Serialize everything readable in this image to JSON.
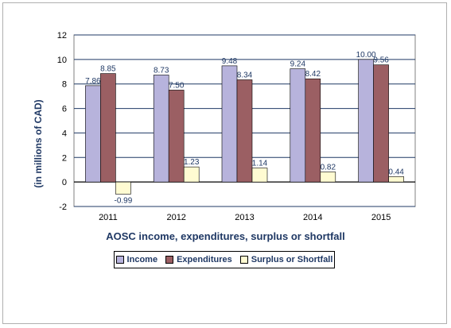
{
  "chart_data": {
    "type": "bar",
    "categories": [
      "2011",
      "2012",
      "2013",
      "2014",
      "2015"
    ],
    "series": [
      {
        "name": "Income",
        "values": [
          7.86,
          8.73,
          9.48,
          9.24,
          10.0
        ],
        "color": "#b7b3dc",
        "labels": [
          "7.86",
          "8.73",
          "9.48",
          "9.24",
          "10.00"
        ]
      },
      {
        "name": "Expenditures",
        "values": [
          8.85,
          7.5,
          8.34,
          8.42,
          9.56
        ],
        "color": "#9b5f63",
        "labels": [
          "8.85",
          "7.50",
          "8.34",
          "8.42",
          "9.56"
        ]
      },
      {
        "name": "Surplus or Shortfall",
        "values": [
          -0.99,
          1.23,
          1.14,
          0.82,
          0.44
        ],
        "color": "#fffbd2",
        "labels": [
          "-0.99",
          "1.23",
          "1.14",
          "0.82",
          "0.44"
        ]
      }
    ],
    "xlabel": "AOSC income, expenditures, surplus or shortfall",
    "ylabel": "(in millions of CAD)",
    "ylim": [
      -2,
      12
    ],
    "yticks": [
      "-2",
      "0",
      "2",
      "4",
      "6",
      "8",
      "10",
      "12"
    ],
    "grid": true,
    "legend": "bottom"
  }
}
